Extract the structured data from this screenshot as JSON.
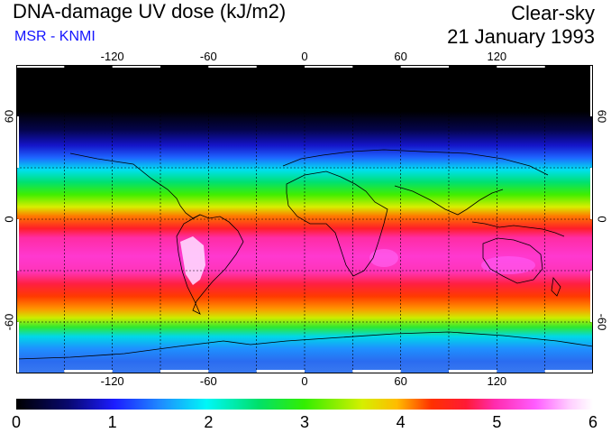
{
  "header": {
    "title": "DNA-damage UV dose (kJ/m2)",
    "source": "MSR - KNMI",
    "condition": "Clear-sky",
    "date": "21 January 1993"
  },
  "map": {
    "projection": "equirectangular",
    "longitude_ticks": [
      {
        "label": "-120",
        "value": -120
      },
      {
        "label": "-60",
        "value": -60
      },
      {
        "label": "0",
        "value": 0
      },
      {
        "label": "60",
        "value": 60
      },
      {
        "label": "120",
        "value": 120
      }
    ],
    "latitude_ticks": [
      {
        "label": "60",
        "value": 60
      },
      {
        "label": "0",
        "value": 0
      },
      {
        "label": "-60",
        "value": -60
      }
    ],
    "lon_range": [
      -180,
      180
    ],
    "lat_range": [
      -90,
      90
    ]
  },
  "colorbar": {
    "min": 0,
    "max": 6,
    "labels": [
      "0",
      "1",
      "2",
      "3",
      "4",
      "5",
      "6"
    ]
  },
  "colors": {
    "subtitle": "#1414ff",
    "background": "#ffffff"
  }
}
